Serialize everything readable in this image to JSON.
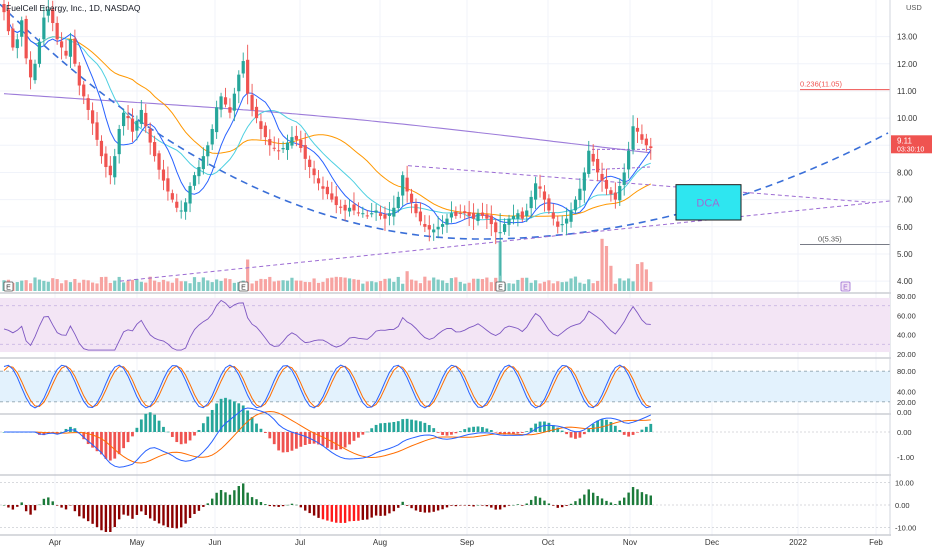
{
  "header": {
    "title": "FuelCell Energy, Inc., 1D, NASDAQ"
  },
  "colors": {
    "up": "#26a69a",
    "down": "#ef5350",
    "vol_up": "#80cbc4",
    "vol_down": "#f7a3a1",
    "sma_fast": "#2962ff",
    "sma_mid": "#4dd0e1",
    "sma_slow": "#ff9800",
    "sma_long": "#9c7bd9",
    "dashed_curve": "#3a6fd8",
    "trend": "#9c6bd3",
    "rsi": "#7e57c2",
    "stoch_k": "#2962ff",
    "stoch_d": "#ff6d00",
    "macd": "#2962ff",
    "signal": "#ff6d00",
    "osc_up": "#1b7a3a",
    "osc_down": "#8b0000"
  },
  "chart_data": [
    {
      "type": "candlestick",
      "title": "FuelCell Energy, Inc., 1D, NASDAQ",
      "currency": "USD",
      "ylim": [
        3.6,
        14.2
      ],
      "y_ticks": [
        "13.00",
        "12.00",
        "11.00",
        "10.00",
        "9.00",
        "8.00",
        "7.00",
        "6.00",
        "5.00",
        "4.00"
      ],
      "x_ticks": [
        "Apr",
        "May",
        "Jun",
        "Jul",
        "Aug",
        "Sep",
        "Oct",
        "Nov",
        "Dec",
        "2022",
        "Feb"
      ],
      "last_price": "9.11",
      "countdown": "03:30:10",
      "fib_levels": [
        {
          "label": "0.236(11.05)",
          "value": 11.05
        },
        {
          "label": "0(5.35)",
          "value": 5.35
        }
      ],
      "annotation": "DCA",
      "earnings_markers": [
        "E",
        "E",
        "E",
        "E"
      ],
      "closes": [
        13.9,
        13.2,
        12.6,
        12.9,
        13.6,
        12.2,
        11.5,
        12.0,
        12.8,
        13.7,
        14.0,
        13.5,
        12.9,
        12.6,
        12.3,
        12.9,
        12.0,
        11.2,
        10.8,
        10.3,
        9.8,
        9.2,
        8.6,
        8.2,
        7.9,
        8.6,
        9.6,
        10.2,
        10.0,
        9.5,
        9.9,
        10.3,
        9.7,
        9.1,
        8.6,
        8.1,
        7.7,
        7.3,
        7.0,
        6.7,
        6.6,
        6.9,
        7.5,
        7.9,
        8.2,
        8.6,
        9.0,
        9.6,
        10.4,
        10.8,
        10.5,
        10.2,
        10.9,
        11.6,
        12.1,
        10.9,
        10.3,
        10.0,
        9.6,
        9.3,
        9.0,
        8.9,
        8.8,
        8.9,
        9.1,
        9.3,
        9.2,
        8.9,
        8.5,
        8.2,
        7.9,
        7.6,
        7.4,
        7.2,
        7.0,
        6.8,
        6.7,
        6.6,
        6.7,
        6.6,
        6.5,
        6.5,
        6.4,
        6.5,
        6.6,
        6.4,
        6.3,
        6.5,
        6.7,
        7.1,
        7.9,
        7.3,
        6.9,
        6.5,
        6.2,
        6.0,
        5.9,
        5.9,
        6.0,
        6.1,
        6.3,
        6.5,
        6.4,
        6.5,
        6.5,
        6.4,
        6.3,
        6.5,
        6.4,
        6.3,
        6.1,
        5.8,
        5.8,
        6.1,
        6.3,
        6.4,
        6.5,
        6.3,
        6.6,
        7.1,
        7.6,
        7.4,
        7.0,
        6.6,
        6.3,
        6.0,
        6.1,
        6.3,
        6.6,
        7.0,
        7.4,
        8.0,
        8.8,
        8.4,
        8.0,
        7.7,
        7.4,
        7.2,
        7.0,
        7.5,
        8.0,
        8.8,
        9.7,
        9.5,
        9.2,
        9.0,
        8.9
      ],
      "volume_ylim": [
        0,
        100
      ]
    },
    {
      "type": "line",
      "name": "RSI",
      "ylim": [
        20,
        80
      ],
      "y_ticks": [
        "80.00",
        "60.00",
        "40.00",
        "20.00"
      ],
      "band": [
        30,
        70
      ]
    },
    {
      "type": "line",
      "name": "Stochastic",
      "ylim": [
        0,
        100
      ],
      "y_ticks": [
        "80.00",
        "40.00",
        "20.00",
        "0.00"
      ],
      "band": [
        20,
        80
      ]
    },
    {
      "type": "line",
      "name": "MACD",
      "ylim": [
        -1.6,
        0.6
      ],
      "y_ticks": [
        "0.00",
        "-1.00"
      ]
    },
    {
      "type": "bar",
      "name": "Oscillator",
      "ylim": [
        -12,
        12
      ],
      "y_ticks": [
        "10.00",
        "0.00",
        "-10.00"
      ]
    }
  ]
}
